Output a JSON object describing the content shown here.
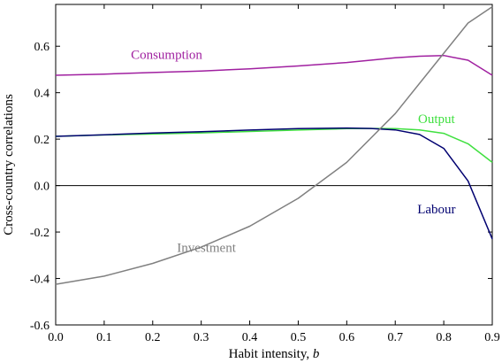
{
  "chart_data": {
    "type": "line",
    "title": "",
    "xlabel": "Habit intensity, ",
    "xlabel_var": "b",
    "ylabel": "Cross-country correlations",
    "xlim": [
      0.0,
      0.9
    ],
    "ylim": [
      -0.6,
      0.78
    ],
    "x_ticks": [
      0.0,
      0.1,
      0.2,
      0.3,
      0.4,
      0.5,
      0.6,
      0.7,
      0.8,
      0.9
    ],
    "x_tick_labels": [
      "0.0",
      "0.1",
      "0.2",
      "0.3",
      "0.4",
      "0.5",
      "0.6",
      "0.7",
      "0.8",
      "0.9"
    ],
    "y_ticks": [
      -0.6,
      -0.4,
      -0.2,
      0.0,
      0.2,
      0.4,
      0.6
    ],
    "y_tick_labels": [
      "-0.6",
      "-0.4",
      "-0.2",
      "0.0",
      "0.2",
      "0.4",
      "0.6"
    ],
    "zero_line": true,
    "grid": false,
    "series": [
      {
        "name": "Consumption",
        "color": "#a020a0",
        "x": [
          0.0,
          0.1,
          0.2,
          0.3,
          0.4,
          0.5,
          0.6,
          0.7,
          0.75,
          0.8,
          0.85,
          0.9
        ],
        "y": [
          0.475,
          0.48,
          0.487,
          0.493,
          0.503,
          0.515,
          0.53,
          0.55,
          0.557,
          0.56,
          0.54,
          0.475
        ]
      },
      {
        "name": "Output",
        "color": "#40e040",
        "x": [
          0.0,
          0.1,
          0.2,
          0.3,
          0.4,
          0.5,
          0.6,
          0.65,
          0.7,
          0.75,
          0.8,
          0.85,
          0.9
        ],
        "y": [
          0.212,
          0.218,
          0.222,
          0.227,
          0.233,
          0.239,
          0.245,
          0.246,
          0.245,
          0.24,
          0.225,
          0.18,
          0.1
        ]
      },
      {
        "name": "Labour",
        "color": "#000070",
        "x": [
          0.0,
          0.1,
          0.2,
          0.3,
          0.4,
          0.5,
          0.6,
          0.65,
          0.7,
          0.75,
          0.8,
          0.85,
          0.9
        ],
        "y": [
          0.212,
          0.219,
          0.226,
          0.232,
          0.239,
          0.245,
          0.248,
          0.246,
          0.24,
          0.22,
          0.16,
          0.02,
          -0.23
        ]
      },
      {
        "name": "Investment",
        "color": "#808080",
        "x": [
          0.0,
          0.1,
          0.2,
          0.3,
          0.4,
          0.5,
          0.6,
          0.7,
          0.8,
          0.85,
          0.9
        ],
        "y": [
          -0.425,
          -0.39,
          -0.335,
          -0.265,
          -0.175,
          -0.055,
          0.1,
          0.31,
          0.57,
          0.7,
          0.77
        ]
      }
    ],
    "annotations": [
      {
        "text": "Consumption",
        "series": "Consumption",
        "at_x": 0.155,
        "at_y": 0.545,
        "anchor": "start"
      },
      {
        "text": "Output",
        "series": "Output",
        "at_x": 0.785,
        "at_y": 0.27,
        "anchor": "middle"
      },
      {
        "text": "Labour",
        "series": "Labour",
        "at_x": 0.785,
        "at_y": -0.12,
        "anchor": "middle"
      },
      {
        "text": "Investment",
        "series": "Investment",
        "at_x": 0.25,
        "at_y": -0.285,
        "anchor": "start"
      }
    ]
  }
}
